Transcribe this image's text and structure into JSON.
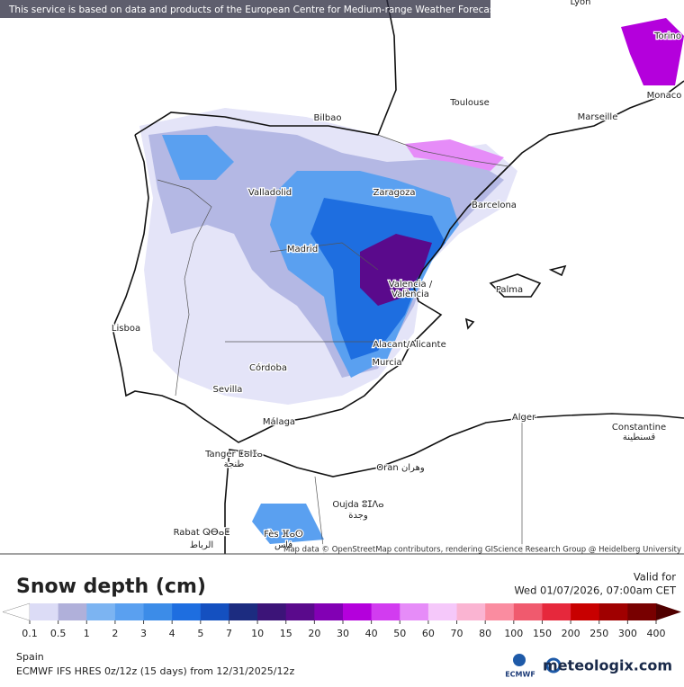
{
  "header": {
    "notice": "This service is based on data and products of the European Centre for Medium-range Weather Forecasts (ECMWF)"
  },
  "map": {
    "cities": [
      "Lyon",
      "Torino",
      "Monaco",
      "Toulouse",
      "Marseille",
      "Bilbao",
      "Valladolid",
      "Zaragoza",
      "Barcelona",
      "Madrid",
      "Valencia /",
      "València",
      "Palma",
      "Lisboa",
      "Alacant/Alicante",
      "Murcia",
      "Córdoba",
      "Sevilla",
      "Málaga",
      "Alger",
      "Constantine",
      "قسنطينة",
      "Tanger ⵟⴰⵏⵊⴰ",
      "طنجة",
      "Oran وهران",
      "Oujda ⵓⵊⴷⴰ",
      "وجدة",
      "Rabat ⵕⴱⴰⵟ",
      "الرباط",
      "Fès ⴼⴰⵙ",
      "فاس"
    ],
    "attribution": "Map data © OpenStreetMap contributors, rendering GIScience Research Group @ Heidelberg University"
  },
  "legend": {
    "title": "Snow depth (cm)",
    "valid_label": "Valid for",
    "valid_time": "Wed 01/07/2026, 07:00am CET",
    "ticks": [
      0.1,
      0.5,
      1,
      2,
      3,
      4,
      5,
      7,
      10,
      15,
      20,
      30,
      40,
      50,
      60,
      70,
      80,
      100,
      150,
      200,
      250,
      300,
      400
    ],
    "colors": [
      "#ffffff",
      "#dcdcf6",
      "#b0b0da",
      "#7cb4f2",
      "#5aa0f0",
      "#3c8ce8",
      "#1e6ee0",
      "#1450c0",
      "#1c2c80",
      "#3c1478",
      "#5a0a8c",
      "#8200b4",
      "#b400dc",
      "#d23cf0",
      "#e68cf8",
      "#f5c8fa",
      "#fab4d2",
      "#fa8ca0",
      "#f05a6e",
      "#e6283c",
      "#c80000",
      "#a00000",
      "#780000",
      "#500000"
    ]
  },
  "footer": {
    "region": "Spain",
    "model": "ECMWF IFS HRES 0z/12z (15 days) from 12/31/2025/12z",
    "logo_left": "ECMWF",
    "logo_right": "meteologix.com"
  }
}
